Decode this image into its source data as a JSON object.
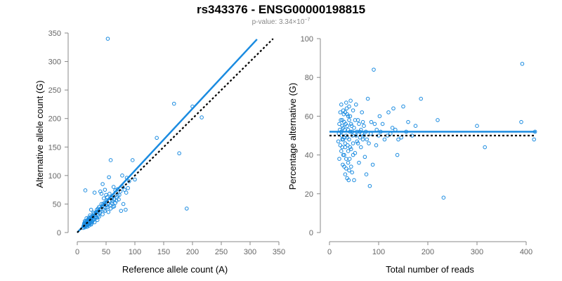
{
  "header": {
    "title": "rs343376 - ENSG00000198815",
    "pvalue_prefix": "p-value: 3.34×10",
    "pvalue_exponent": "−7"
  },
  "colors": {
    "points": "#1a8be0",
    "fit": "#1a8be0",
    "reference": "#000000",
    "axis": "#888888"
  },
  "chart_data": [
    {
      "type": "scatter",
      "xlabel": "Reference allele count (A)",
      "ylabel": "Alternative allele count (G)",
      "xlim": [
        0,
        350
      ],
      "ylim": [
        0,
        350
      ],
      "xticks": [
        0,
        50,
        100,
        150,
        200,
        250,
        300,
        350
      ],
      "yticks": [
        0,
        50,
        100,
        150,
        200,
        250,
        300,
        350
      ],
      "fit_line": {
        "x": [
          0,
          312
        ],
        "y": [
          0,
          339
        ]
      },
      "reference_line": {
        "x": [
          0,
          340
        ],
        "y": [
          0,
          340
        ]
      },
      "points": [
        [
          53,
          340
        ],
        [
          168,
          226
        ],
        [
          200,
          221
        ],
        [
          216,
          202
        ],
        [
          138,
          166
        ],
        [
          177,
          139
        ],
        [
          190,
          42
        ],
        [
          96,
          127
        ],
        [
          58,
          127
        ],
        [
          55,
          97
        ],
        [
          78,
          100
        ],
        [
          86,
          96
        ],
        [
          100,
          93
        ],
        [
          44,
          85
        ],
        [
          63,
          80
        ],
        [
          70,
          76
        ],
        [
          48,
          75
        ],
        [
          40,
          72
        ],
        [
          30,
          70
        ],
        [
          42,
          68
        ],
        [
          14,
          74
        ],
        [
          52,
          62
        ],
        [
          60,
          60
        ],
        [
          56,
          55
        ],
        [
          72,
          58
        ],
        [
          66,
          52
        ],
        [
          45,
          50
        ],
        [
          38,
          45
        ],
        [
          34,
          40
        ],
        [
          28,
          35
        ],
        [
          22,
          30
        ],
        [
          62,
          45
        ],
        [
          80,
          50
        ],
        [
          84,
          40
        ],
        [
          76,
          38
        ],
        [
          90,
          90
        ],
        [
          70,
          65
        ],
        [
          50,
          48
        ],
        [
          36,
          30
        ],
        [
          26,
          25
        ],
        [
          20,
          22
        ],
        [
          18,
          18
        ],
        [
          16,
          15
        ],
        [
          14,
          12
        ],
        [
          12,
          10
        ],
        [
          10,
          8
        ],
        [
          24,
          40
        ],
        [
          32,
          28
        ],
        [
          30,
          18
        ],
        [
          15,
          20
        ],
        [
          16,
          25
        ],
        [
          20,
          12
        ],
        [
          22,
          16
        ],
        [
          25,
          20
        ],
        [
          28,
          22
        ],
        [
          13,
          17
        ],
        [
          17,
          14
        ],
        [
          19,
          19
        ],
        [
          21,
          24
        ],
        [
          23,
          27
        ],
        [
          27,
          30
        ],
        [
          29,
          33
        ],
        [
          31,
          26
        ],
        [
          33,
          36
        ],
        [
          35,
          22
        ],
        [
          37,
          38
        ],
        [
          39,
          34
        ],
        [
          41,
          42
        ],
        [
          43,
          46
        ],
        [
          46,
          40
        ],
        [
          47,
          52
        ],
        [
          49,
          44
        ],
        [
          51,
          56
        ],
        [
          54,
          50
        ],
        [
          57,
          48
        ],
        [
          59,
          62
        ],
        [
          61,
          55
        ],
        [
          64,
          58
        ],
        [
          67,
          70
        ],
        [
          69,
          62
        ],
        [
          73,
          66
        ],
        [
          75,
          72
        ],
        [
          79,
          80
        ],
        [
          82,
          75
        ],
        [
          85,
          70
        ],
        [
          88,
          78
        ],
        [
          12,
          14
        ],
        [
          13,
          20
        ],
        [
          14,
          16
        ],
        [
          15,
          11
        ],
        [
          16,
          18
        ],
        [
          17,
          21
        ],
        [
          18,
          13
        ],
        [
          19,
          23
        ],
        [
          20,
          17
        ],
        [
          21,
          15
        ],
        [
          22,
          21
        ],
        [
          23,
          18
        ],
        [
          24,
          23
        ],
        [
          25,
          16
        ],
        [
          26,
          19
        ],
        [
          11,
          12
        ],
        [
          12,
          16
        ],
        [
          13,
          9
        ],
        [
          15,
          14
        ],
        [
          17,
          10
        ],
        [
          18,
          22
        ],
        [
          20,
          26
        ],
        [
          24,
          14
        ],
        [
          26,
          28
        ],
        [
          28,
          24
        ],
        [
          30,
          30
        ],
        [
          32,
          34
        ],
        [
          34,
          26
        ],
        [
          36,
          42
        ],
        [
          38,
          28
        ],
        [
          40,
          36
        ],
        [
          42,
          50
        ],
        [
          44,
          32
        ],
        [
          46,
          60
        ],
        [
          48,
          38
        ],
        [
          50,
          66
        ],
        [
          52,
          44
        ],
        [
          54,
          36
        ],
        [
          56,
          68
        ],
        [
          58,
          42
        ],
        [
          60,
          52
        ],
        [
          62,
          64
        ],
        [
          64,
          46
        ],
        [
          66,
          74
        ],
        [
          68,
          56
        ]
      ]
    },
    {
      "type": "scatter",
      "xlabel": "Total number of reads",
      "ylabel": "Percentage alternative (G)",
      "xlim": [
        0,
        420
      ],
      "ylim": [
        0,
        100
      ],
      "xticks": [
        0,
        100,
        200,
        300,
        400
      ],
      "yticks": [
        0,
        20,
        40,
        60,
        80,
        100
      ],
      "fit_line": {
        "x": [
          0,
          420
        ],
        "y": [
          52,
          52
        ]
      },
      "reference_line": {
        "x": [
          0,
          420
        ],
        "y": [
          50,
          50
        ]
      },
      "points": [
        [
          392,
          87
        ],
        [
          90,
          84
        ],
        [
          390,
          57
        ],
        [
          418,
          52
        ],
        [
          416,
          48
        ],
        [
          232,
          18
        ],
        [
          300,
          55
        ],
        [
          316,
          44
        ],
        [
          220,
          58
        ],
        [
          186,
          69
        ],
        [
          175,
          55
        ],
        [
          160,
          57
        ],
        [
          150,
          65
        ],
        [
          140,
          48
        ],
        [
          138,
          40
        ],
        [
          130,
          64
        ],
        [
          128,
          54
        ],
        [
          120,
          62
        ],
        [
          112,
          48
        ],
        [
          108,
          56
        ],
        [
          102,
          60
        ],
        [
          100,
          50
        ],
        [
          95,
          45
        ],
        [
          92,
          56
        ],
        [
          88,
          35
        ],
        [
          85,
          57
        ],
        [
          82,
          24
        ],
        [
          80,
          46
        ],
        [
          78,
          69
        ],
        [
          75,
          30
        ],
        [
          72,
          39
        ],
        [
          70,
          55
        ],
        [
          68,
          48
        ],
        [
          66,
          62
        ],
        [
          64,
          44
        ],
        [
          62,
          52
        ],
        [
          60,
          36
        ],
        [
          58,
          58
        ],
        [
          56,
          47
        ],
        [
          54,
          66
        ],
        [
          52,
          41
        ],
        [
          50,
          27
        ],
        [
          48,
          63
        ],
        [
          47,
          50
        ],
        [
          46,
          31
        ],
        [
          45,
          55
        ],
        [
          44,
          43
        ],
        [
          43,
          68
        ],
        [
          42,
          52
        ],
        [
          41,
          38
        ],
        [
          40,
          58
        ],
        [
          39,
          27
        ],
        [
          38,
          60
        ],
        [
          37,
          45
        ],
        [
          36,
          49
        ],
        [
          35,
          64
        ],
        [
          34,
          33
        ],
        [
          33,
          56
        ],
        [
          32,
          46
        ],
        [
          31,
          53
        ],
        [
          30,
          40
        ],
        [
          29,
          61
        ],
        [
          28,
          48
        ],
        [
          27,
          35
        ],
        [
          26,
          55
        ],
        [
          25,
          50
        ],
        [
          24,
          42
        ],
        [
          23,
          58
        ],
        [
          22,
          45
        ],
        [
          21,
          53
        ],
        [
          20,
          38
        ],
        [
          19,
          51
        ],
        [
          18,
          47
        ],
        [
          20,
          56
        ],
        [
          22,
          62
        ],
        [
          24,
          66
        ],
        [
          26,
          58
        ],
        [
          28,
          54
        ],
        [
          30,
          49
        ],
        [
          32,
          62
        ],
        [
          34,
          67
        ],
        [
          36,
          55
        ],
        [
          38,
          42
        ],
        [
          40,
          48
        ],
        [
          42,
          60
        ],
        [
          44,
          56
        ],
        [
          46,
          52
        ],
        [
          48,
          46
        ],
        [
          50,
          54
        ],
        [
          52,
          58
        ],
        [
          54,
          50
        ],
        [
          56,
          52
        ],
        [
          58,
          46
        ],
        [
          60,
          56
        ],
        [
          62,
          49
        ],
        [
          64,
          53
        ],
        [
          66,
          51
        ],
        [
          68,
          57
        ],
        [
          70,
          50
        ],
        [
          74,
          52
        ],
        [
          76,
          48
        ],
        [
          84,
          51
        ],
        [
          96,
          53
        ],
        [
          104,
          52
        ],
        [
          118,
          50
        ],
        [
          124,
          51
        ],
        [
          134,
          53
        ],
        [
          146,
          49
        ],
        [
          156,
          52
        ],
        [
          168,
          50
        ],
        [
          26,
          44
        ],
        [
          28,
          40
        ],
        [
          30,
          34
        ],
        [
          32,
          30
        ],
        [
          34,
          38
        ],
        [
          36,
          28
        ],
        [
          38,
          36
        ],
        [
          40,
          32
        ],
        [
          44,
          34
        ],
        [
          48,
          40
        ],
        [
          24,
          52
        ],
        [
          26,
          48
        ],
        [
          28,
          63
        ],
        [
          30,
          57
        ],
        [
          32,
          44
        ],
        [
          34,
          50
        ],
        [
          36,
          61
        ],
        [
          38,
          53
        ],
        [
          40,
          65
        ],
        [
          42,
          44
        ]
      ]
    }
  ]
}
